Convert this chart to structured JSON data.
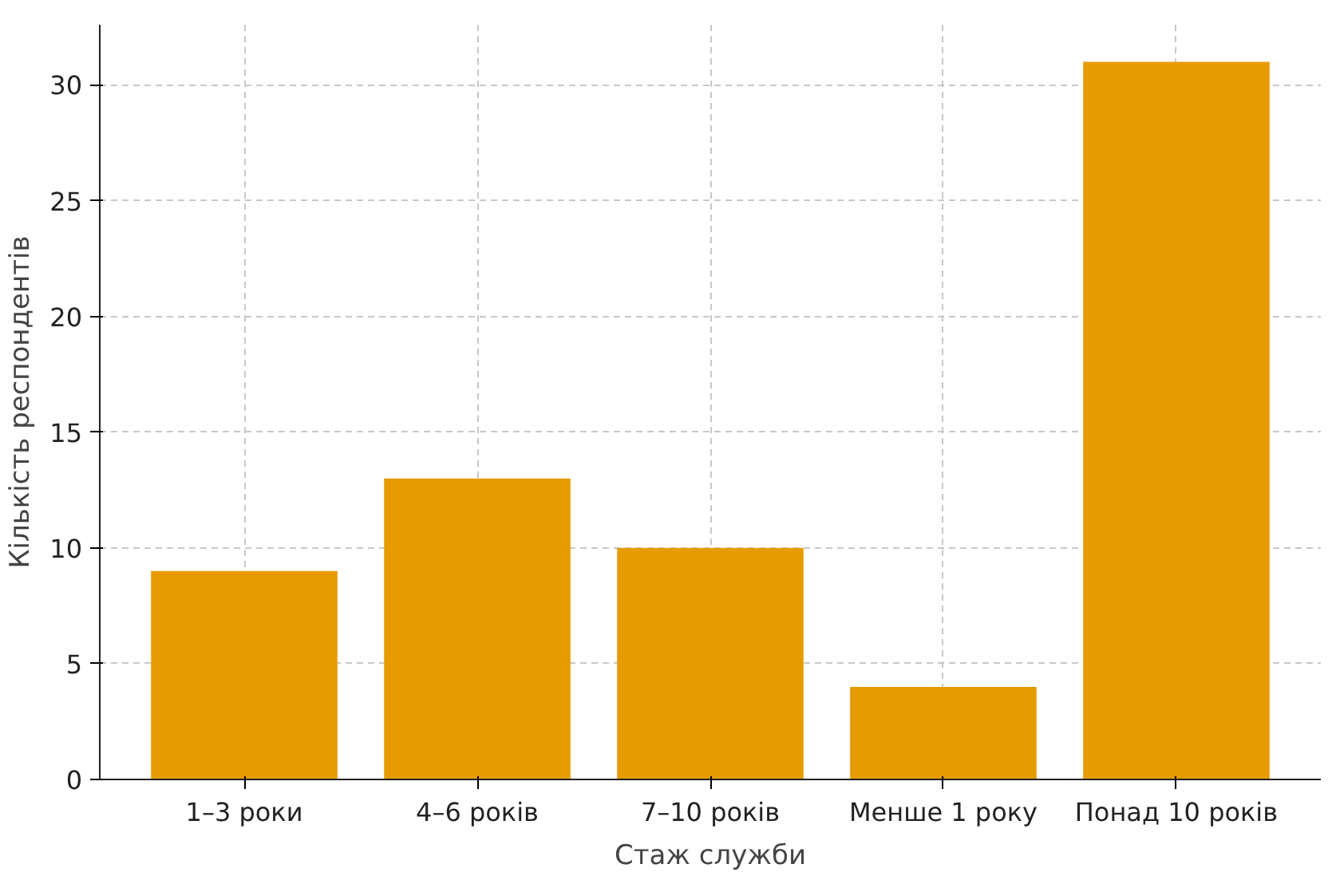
{
  "chart_data": {
    "type": "bar",
    "xlabel": "Стаж служби",
    "ylabel": "Кількість респондентів",
    "categories": [
      "1–3 роки",
      "4–6 років",
      "7–10 років",
      "Менше 1 року",
      "Понад 10 років"
    ],
    "values": [
      9,
      13,
      10,
      4,
      31
    ],
    "color": "#e69b00",
    "ylim": [
      0,
      32.6
    ],
    "yticks": [
      0,
      5,
      10,
      15,
      20,
      25,
      30
    ],
    "grid": true
  }
}
